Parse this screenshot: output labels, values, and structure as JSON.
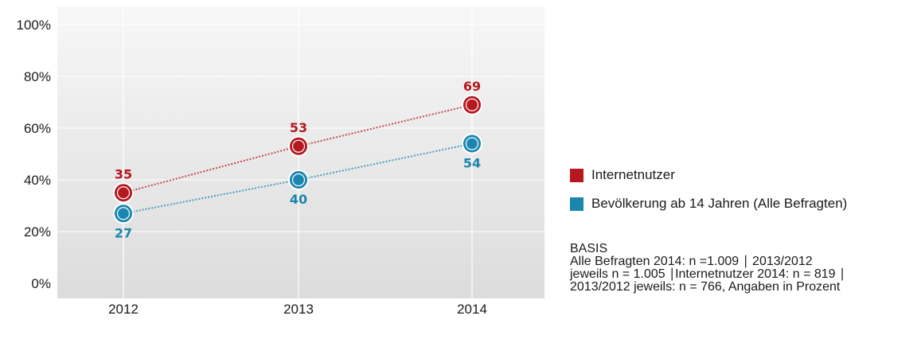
{
  "chart_data": {
    "type": "line",
    "categories": [
      "2012",
      "2013",
      "2014"
    ],
    "ylim": [
      0,
      100
    ],
    "yticks": [
      "0%",
      "20%",
      "40%",
      "60%",
      "80%",
      "100%"
    ],
    "series": [
      {
        "name": "Internetnutzer",
        "values": [
          35,
          53,
          69
        ],
        "labels": [
          "35",
          "53",
          "69"
        ],
        "color": "#b5181f"
      },
      {
        "name": "Bevölkerung ab 14 Jahren (Alle Befragten)",
        "values": [
          27,
          40,
          54
        ],
        "labels": [
          "27",
          "40",
          "54"
        ],
        "color": "#1a86ae"
      }
    ]
  },
  "basis": {
    "heading": "BASIS",
    "line1": "Alle Befragten 2014: n =1.009 ∣ 2013/2012",
    "line2": "jeweils n = 1.005 ∣Internetnutzer 2014: n = 819 ∣",
    "line3": "2013/2012 jeweils: n = 766, Angaben in Prozent"
  }
}
